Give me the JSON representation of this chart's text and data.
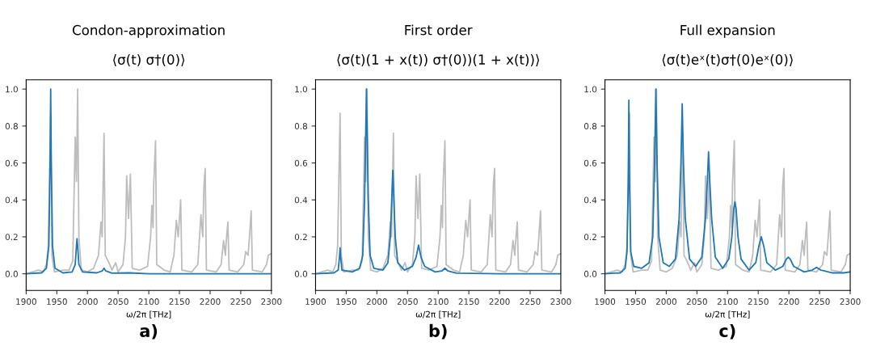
{
  "chart_data": [
    {
      "type": "line",
      "title": "Condon-approximation",
      "subtitle": "⟨σ(t) σ†(0)⟩",
      "xlabel": "ω/2π [THz]",
      "annotations": [
        "a)"
      ],
      "xlim": [
        1900,
        2300
      ],
      "xticks": [
        1900,
        1950,
        2000,
        2050,
        2100,
        2150,
        2200,
        2250,
        2300
      ],
      "ylim": [
        -0.09,
        1.05
      ],
      "yticks": [
        {
          "value": 0,
          "label": "0.0"
        },
        {
          "value": 0.2,
          "label": "0.2"
        },
        {
          "value": 0.4,
          "label": "0.4"
        },
        {
          "value": 0.6,
          "label": "0.6"
        },
        {
          "value": 0.8,
          "label": "0.8"
        },
        {
          "value": 1,
          "label": "1.0"
        }
      ],
      "grid": false,
      "series": [
        {
          "type": "line",
          "color": "#bdbdbd",
          "x": [
            1900,
            1910,
            1920,
            1928,
            1933,
            1936,
            1938,
            1940,
            1942,
            1946,
            1960,
            1970,
            1976,
            1980,
            1982,
            1984,
            1986,
            1990,
            2000,
            2010,
            2018,
            2022,
            2024,
            2027,
            2029,
            2035,
            2040,
            2046,
            2050,
            2058,
            2062,
            2064,
            2067,
            2070,
            2073,
            2085,
            2098,
            2103,
            2105,
            2107,
            2108,
            2111,
            2113,
            2125,
            2135,
            2141,
            2145,
            2148,
            2152,
            2154,
            2170,
            2180,
            2185,
            2188,
            2190,
            2192,
            2194,
            2210,
            2218,
            2222,
            2225,
            2226,
            2229,
            2231,
            2245,
            2255,
            2258,
            2262,
            2264,
            2267,
            2269,
            2285,
            2292,
            2295,
            2300
          ],
          "values": [
            0,
            0.01,
            0.02,
            0.01,
            0.05,
            0.15,
            0.5,
            0.87,
            0.1,
            0.01,
            0.02,
            0.02,
            0.07,
            0.74,
            0.5,
            1.0,
            0.2,
            0.02,
            0.01,
            0.03,
            0.1,
            0.28,
            0.2,
            0.76,
            0.1,
            0.06,
            0.02,
            0.06,
            0.01,
            0.05,
            0.2,
            0.53,
            0.3,
            0.54,
            0.03,
            0.02,
            0.04,
            0.2,
            0.37,
            0.25,
            0.48,
            0.72,
            0.05,
            0.02,
            0.01,
            0.1,
            0.29,
            0.2,
            0.4,
            0.02,
            0.01,
            0.05,
            0.32,
            0.2,
            0.48,
            0.57,
            0.02,
            0.01,
            0.05,
            0.18,
            0.1,
            0.16,
            0.28,
            0.02,
            0.01,
            0.05,
            0.12,
            0.1,
            0.19,
            0.34,
            0.02,
            0.01,
            0.05,
            0.1,
            0.11
          ]
        },
        {
          "type": "line",
          "color": "#1f77b4",
          "x": [
            1900,
            1925,
            1933,
            1937,
            1939,
            1940,
            1941,
            1943,
            1947,
            1960,
            1975,
            1980,
            1982,
            1983,
            1984,
            1986,
            1992,
            2015,
            2024,
            2027,
            2030,
            2040,
            2068,
            2100,
            2300
          ],
          "values": [
            0,
            0.005,
            0.03,
            0.15,
            0.6,
            1.0,
            0.6,
            0.15,
            0.03,
            0.005,
            0.01,
            0.05,
            0.15,
            0.19,
            0.15,
            0.05,
            0.01,
            0.005,
            0.015,
            0.03,
            0.015,
            0.003,
            0.005,
            0,
            0
          ]
        }
      ]
    },
    {
      "type": "line",
      "title": "First order",
      "subtitle": "⟨σ(t)(1 + x(t)) σ†(0))(1 + x(t))⟩",
      "xlabel": "ω/2π [THz]",
      "annotations": [
        "b)"
      ],
      "xlim": [
        1900,
        2300
      ],
      "xticks": [
        1900,
        1950,
        2000,
        2050,
        2100,
        2150,
        2200,
        2250,
        2300
      ],
      "ylim": [
        -0.09,
        1.05
      ],
      "yticks": [
        {
          "value": 0,
          "label": "0.0"
        },
        {
          "value": 0.2,
          "label": "0.2"
        },
        {
          "value": 0.4,
          "label": "0.4"
        },
        {
          "value": 0.6,
          "label": "0.6"
        },
        {
          "value": 0.8,
          "label": "0.8"
        },
        {
          "value": 1,
          "label": "1.0"
        }
      ],
      "grid": false,
      "series": [
        {
          "type": "line",
          "color": "#bdbdbd",
          "x": [
            1900,
            1910,
            1920,
            1928,
            1933,
            1936,
            1938,
            1940,
            1942,
            1946,
            1960,
            1970,
            1976,
            1980,
            1982,
            1984,
            1986,
            1990,
            2000,
            2010,
            2018,
            2022,
            2024,
            2027,
            2029,
            2035,
            2040,
            2046,
            2050,
            2058,
            2062,
            2064,
            2067,
            2070,
            2073,
            2085,
            2098,
            2103,
            2105,
            2107,
            2108,
            2111,
            2113,
            2125,
            2135,
            2141,
            2145,
            2148,
            2152,
            2154,
            2170,
            2180,
            2185,
            2188,
            2190,
            2192,
            2194,
            2210,
            2218,
            2222,
            2225,
            2226,
            2229,
            2231,
            2245,
            2255,
            2258,
            2262,
            2264,
            2267,
            2269,
            2285,
            2292,
            2295,
            2300
          ],
          "values": [
            0,
            0.01,
            0.02,
            0.01,
            0.05,
            0.15,
            0.5,
            0.87,
            0.1,
            0.01,
            0.02,
            0.02,
            0.07,
            0.74,
            0.5,
            1.0,
            0.2,
            0.02,
            0.01,
            0.03,
            0.1,
            0.28,
            0.2,
            0.76,
            0.1,
            0.06,
            0.02,
            0.06,
            0.01,
            0.05,
            0.2,
            0.53,
            0.3,
            0.54,
            0.03,
            0.02,
            0.04,
            0.2,
            0.37,
            0.25,
            0.48,
            0.72,
            0.05,
            0.02,
            0.01,
            0.1,
            0.29,
            0.2,
            0.4,
            0.02,
            0.01,
            0.05,
            0.32,
            0.2,
            0.48,
            0.57,
            0.02,
            0.01,
            0.05,
            0.18,
            0.1,
            0.16,
            0.28,
            0.02,
            0.01,
            0.05,
            0.12,
            0.1,
            0.19,
            0.34,
            0.02,
            0.01,
            0.05,
            0.1,
            0.11
          ]
        },
        {
          "type": "line",
          "color": "#1f77b4",
          "x": [
            1900,
            1930,
            1937,
            1939,
            1940,
            1941,
            1943,
            1960,
            1972,
            1977,
            1980,
            1983,
            1986,
            1989,
            1995,
            2010,
            2018,
            2022,
            2026,
            2030,
            2034,
            2045,
            2058,
            2064,
            2068,
            2072,
            2078,
            2095,
            2106,
            2111,
            2116,
            2130,
            2200,
            2300
          ],
          "values": [
            0,
            0.005,
            0.02,
            0.09,
            0.14,
            0.09,
            0.02,
            0.01,
            0.03,
            0.1,
            0.4,
            1.0,
            0.4,
            0.1,
            0.03,
            0.02,
            0.06,
            0.2,
            0.56,
            0.2,
            0.06,
            0.02,
            0.04,
            0.09,
            0.155,
            0.09,
            0.04,
            0.01,
            0.015,
            0.03,
            0.015,
            0.003,
            0,
            0
          ]
        }
      ]
    },
    {
      "type": "line",
      "title": "Full expansion",
      "subtitle": "⟨σ(t)eˣ(t)σ†(0)eˣ(0)⟩",
      "xlabel": "ω/2π [THz]",
      "annotations": [
        "c)"
      ],
      "xlim": [
        1900,
        2300
      ],
      "xticks": [
        1900,
        1950,
        2000,
        2050,
        2100,
        2150,
        2200,
        2250,
        2300
      ],
      "ylim": [
        -0.09,
        1.05
      ],
      "yticks": [
        {
          "value": 0,
          "label": "0.0"
        },
        {
          "value": 0.2,
          "label": "0.2"
        },
        {
          "value": 0.4,
          "label": "0.4"
        },
        {
          "value": 0.6,
          "label": "0.6"
        },
        {
          "value": 0.8,
          "label": "0.8"
        },
        {
          "value": 1,
          "label": "1.0"
        }
      ],
      "grid": false,
      "series": [
        {
          "type": "line",
          "color": "#bdbdbd",
          "x": [
            1900,
            1910,
            1920,
            1928,
            1933,
            1936,
            1938,
            1940,
            1942,
            1946,
            1960,
            1970,
            1976,
            1980,
            1982,
            1984,
            1986,
            1990,
            2000,
            2010,
            2018,
            2022,
            2024,
            2027,
            2029,
            2035,
            2040,
            2046,
            2050,
            2058,
            2062,
            2064,
            2067,
            2070,
            2073,
            2085,
            2098,
            2103,
            2105,
            2107,
            2108,
            2111,
            2113,
            2125,
            2135,
            2141,
            2145,
            2148,
            2152,
            2154,
            2170,
            2180,
            2185,
            2188,
            2190,
            2192,
            2194,
            2210,
            2218,
            2222,
            2225,
            2226,
            2229,
            2231,
            2245,
            2255,
            2258,
            2262,
            2264,
            2267,
            2269,
            2285,
            2292,
            2295,
            2300
          ],
          "values": [
            0,
            0.01,
            0.02,
            0.01,
            0.05,
            0.15,
            0.5,
            0.87,
            0.1,
            0.01,
            0.02,
            0.02,
            0.07,
            0.74,
            0.5,
            1.0,
            0.2,
            0.02,
            0.01,
            0.03,
            0.1,
            0.28,
            0.2,
            0.76,
            0.1,
            0.06,
            0.02,
            0.06,
            0.01,
            0.05,
            0.2,
            0.53,
            0.3,
            0.54,
            0.03,
            0.02,
            0.04,
            0.2,
            0.37,
            0.25,
            0.48,
            0.72,
            0.05,
            0.02,
            0.01,
            0.1,
            0.29,
            0.2,
            0.4,
            0.02,
            0.01,
            0.05,
            0.32,
            0.2,
            0.48,
            0.57,
            0.02,
            0.01,
            0.05,
            0.18,
            0.1,
            0.16,
            0.28,
            0.02,
            0.01,
            0.05,
            0.12,
            0.1,
            0.19,
            0.34,
            0.02,
            0.01,
            0.05,
            0.1,
            0.11
          ]
        },
        {
          "type": "line",
          "color": "#1f77b4",
          "x": [
            1900,
            1925,
            1933,
            1936,
            1938,
            1939,
            1940,
            1942,
            1947,
            1960,
            1972,
            1978,
            1981,
            1983,
            1985,
            1988,
            1995,
            2005,
            2015,
            2021,
            2024,
            2026,
            2028,
            2031,
            2038,
            2048,
            2058,
            2064,
            2067,
            2069,
            2071,
            2074,
            2080,
            2092,
            2102,
            2107,
            2110,
            2112,
            2114,
            2117,
            2122,
            2135,
            2146,
            2151,
            2155,
            2159,
            2164,
            2178,
            2190,
            2196,
            2199,
            2202,
            2208,
            2225,
            2238,
            2245,
            2252,
            2270,
            2290,
            2300
          ],
          "values": [
            0,
            0.005,
            0.03,
            0.12,
            0.5,
            0.94,
            0.5,
            0.12,
            0.04,
            0.03,
            0.06,
            0.2,
            0.6,
            1.0,
            0.6,
            0.2,
            0.06,
            0.04,
            0.08,
            0.3,
            0.6,
            0.92,
            0.6,
            0.3,
            0.08,
            0.04,
            0.09,
            0.3,
            0.5,
            0.66,
            0.5,
            0.3,
            0.09,
            0.03,
            0.08,
            0.2,
            0.35,
            0.39,
            0.35,
            0.2,
            0.08,
            0.02,
            0.06,
            0.15,
            0.2,
            0.15,
            0.06,
            0.02,
            0.04,
            0.08,
            0.09,
            0.08,
            0.04,
            0.01,
            0.02,
            0.035,
            0.02,
            0.005,
            0.005,
            0.01
          ]
        }
      ]
    }
  ]
}
